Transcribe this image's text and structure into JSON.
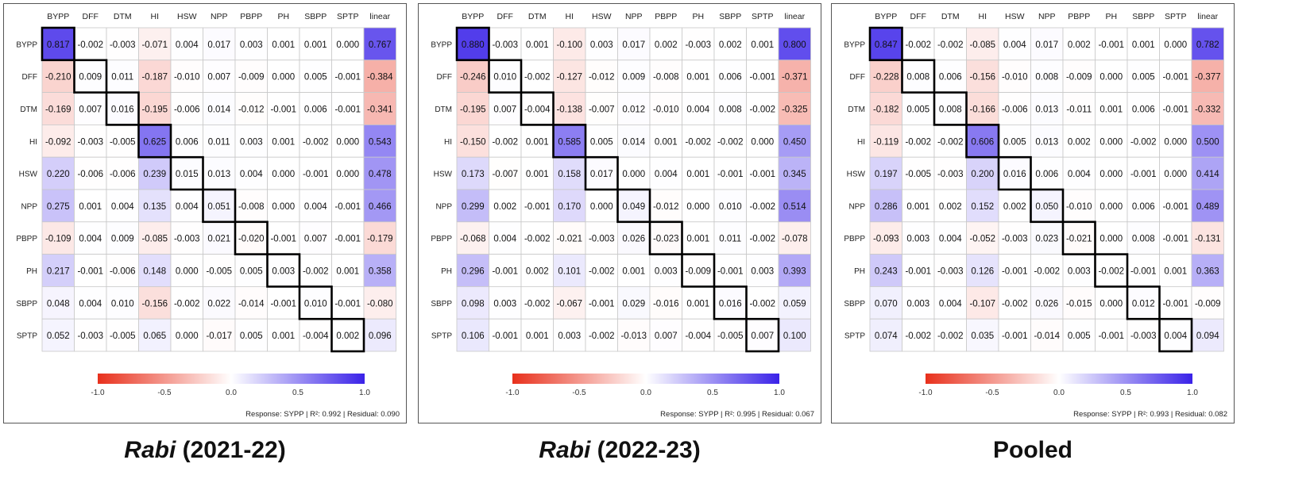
{
  "chart_data": [
    {
      "type": "heatmap",
      "caption_italic": "Rabi",
      "caption_rest": " (2021-22)",
      "columns": [
        "BYPP",
        "DFF",
        "DTM",
        "HI",
        "HSW",
        "NPP",
        "PBPP",
        "PH",
        "SBPP",
        "SPTP",
        "linear"
      ],
      "rows": [
        "BYPP",
        "DFF",
        "DTM",
        "HI",
        "HSW",
        "NPP",
        "PBPP",
        "PH",
        "SBPP",
        "SPTP"
      ],
      "values": [
        [
          0.817,
          -0.002,
          -0.003,
          -0.071,
          0.004,
          0.017,
          0.003,
          0.001,
          0.001,
          0.0,
          0.767
        ],
        [
          -0.21,
          0.009,
          0.011,
          -0.187,
          -0.01,
          0.007,
          -0.009,
          0.0,
          0.005,
          -0.001,
          -0.384
        ],
        [
          -0.169,
          0.007,
          0.016,
          -0.195,
          -0.006,
          0.014,
          -0.012,
          -0.001,
          0.006,
          -0.001,
          -0.341
        ],
        [
          -0.092,
          -0.003,
          -0.005,
          0.625,
          0.006,
          0.011,
          0.003,
          0.001,
          -0.002,
          0.0,
          0.543
        ],
        [
          0.22,
          -0.006,
          -0.006,
          0.239,
          0.015,
          0.013,
          0.004,
          0.0,
          -0.001,
          0.0,
          0.478
        ],
        [
          0.275,
          0.001,
          0.004,
          0.135,
          0.004,
          0.051,
          -0.008,
          0.0,
          0.004,
          -0.001,
          0.466
        ],
        [
          -0.109,
          0.004,
          0.009,
          -0.085,
          -0.003,
          0.021,
          -0.02,
          -0.001,
          0.007,
          -0.001,
          -0.179
        ],
        [
          0.217,
          -0.001,
          -0.006,
          0.148,
          0.0,
          -0.005,
          0.005,
          0.003,
          -0.002,
          0.001,
          0.358
        ],
        [
          0.048,
          0.004,
          0.01,
          -0.156,
          -0.002,
          0.022,
          -0.014,
          -0.001,
          0.01,
          -0.001,
          -0.08
        ],
        [
          0.052,
          -0.003,
          -0.005,
          0.065,
          0.0,
          -0.017,
          0.005,
          0.001,
          -0.004,
          0.002,
          0.096
        ]
      ],
      "color_range": [
        -1.0,
        1.0
      ],
      "colorbar_ticks": [
        "-1.0",
        "-0.5",
        "0.0",
        "0.5",
        "1.0"
      ],
      "colors": {
        "negative": "#e8301c",
        "zero": "#ffffff",
        "positive": "#3a22e8"
      },
      "footer": "Response: SYPP  |  R²: 0.992  |  Residual: 0.090"
    },
    {
      "type": "heatmap",
      "caption_italic": "Rabi",
      "caption_rest": " (2022-23)",
      "columns": [
        "BYPP",
        "DFF",
        "DTM",
        "HI",
        "HSW",
        "NPP",
        "PBPP",
        "PH",
        "SBPP",
        "SPTP",
        "linear"
      ],
      "rows": [
        "BYPP",
        "DFF",
        "DTM",
        "HI",
        "HSW",
        "NPP",
        "PBPP",
        "PH",
        "SBPP",
        "SPTP"
      ],
      "values": [
        [
          0.88,
          -0.003,
          0.001,
          -0.1,
          0.003,
          0.017,
          0.002,
          -0.003,
          0.002,
          0.001,
          0.8
        ],
        [
          -0.246,
          0.01,
          -0.002,
          -0.127,
          -0.012,
          0.009,
          -0.008,
          0.001,
          0.006,
          -0.001,
          -0.371
        ],
        [
          -0.195,
          0.007,
          -0.004,
          -0.138,
          -0.007,
          0.012,
          -0.01,
          0.004,
          0.008,
          -0.002,
          -0.325
        ],
        [
          -0.15,
          -0.002,
          0.001,
          0.585,
          0.005,
          0.014,
          0.001,
          -0.002,
          -0.002,
          0.0,
          0.45
        ],
        [
          0.173,
          -0.007,
          0.001,
          0.158,
          0.017,
          0.0,
          0.004,
          0.001,
          -0.001,
          -0.001,
          0.345
        ],
        [
          0.299,
          0.002,
          -0.001,
          0.17,
          0.0,
          0.049,
          -0.012,
          0.0,
          0.01,
          -0.002,
          0.514
        ],
        [
          -0.068,
          0.004,
          -0.002,
          -0.021,
          -0.003,
          0.026,
          -0.023,
          0.001,
          0.011,
          -0.002,
          -0.078
        ],
        [
          0.296,
          -0.001,
          0.002,
          0.101,
          -0.002,
          0.001,
          0.003,
          -0.009,
          -0.001,
          0.003,
          0.393
        ],
        [
          0.098,
          0.003,
          -0.002,
          -0.067,
          -0.001,
          0.029,
          -0.016,
          0.001,
          0.016,
          -0.002,
          0.059
        ],
        [
          0.106,
          -0.001,
          0.001,
          0.003,
          -0.002,
          -0.013,
          0.007,
          -0.004,
          -0.005,
          0.007,
          0.1
        ]
      ],
      "color_range": [
        -1.0,
        1.0
      ],
      "colorbar_ticks": [
        "-1.0",
        "-0.5",
        "0.0",
        "0.5",
        "1.0"
      ],
      "colors": {
        "negative": "#e8301c",
        "zero": "#ffffff",
        "positive": "#3a22e8"
      },
      "footer": "Response: SYPP  |  R²: 0.995  |  Residual: 0.067"
    },
    {
      "type": "heatmap",
      "caption_italic": "",
      "caption_rest": "Pooled",
      "columns": [
        "BYPP",
        "DFF",
        "DTM",
        "HI",
        "HSW",
        "NPP",
        "PBPP",
        "PH",
        "SBPP",
        "SPTP",
        "linear"
      ],
      "rows": [
        "BYPP",
        "DFF",
        "DTM",
        "HI",
        "HSW",
        "NPP",
        "PBPP",
        "PH",
        "SBPP",
        "SPTP"
      ],
      "values": [
        [
          0.847,
          -0.002,
          -0.002,
          -0.085,
          0.004,
          0.017,
          0.002,
          -0.001,
          0.001,
          0.0,
          0.782
        ],
        [
          -0.228,
          0.008,
          0.006,
          -0.156,
          -0.01,
          0.008,
          -0.009,
          0.0,
          0.005,
          -0.001,
          -0.377
        ],
        [
          -0.182,
          0.005,
          0.008,
          -0.166,
          -0.006,
          0.013,
          -0.011,
          0.001,
          0.006,
          -0.001,
          -0.332
        ],
        [
          -0.119,
          -0.002,
          -0.002,
          0.606,
          0.005,
          0.013,
          0.002,
          0.0,
          -0.002,
          0.0,
          0.5
        ],
        [
          0.197,
          -0.005,
          -0.003,
          0.2,
          0.016,
          0.006,
          0.004,
          0.0,
          -0.001,
          0.0,
          0.414
        ],
        [
          0.286,
          0.001,
          0.002,
          0.152,
          0.002,
          0.05,
          -0.01,
          0.0,
          0.006,
          -0.001,
          0.489
        ],
        [
          -0.093,
          0.003,
          0.004,
          -0.052,
          -0.003,
          0.023,
          -0.021,
          0.0,
          0.008,
          -0.001,
          -0.131
        ],
        [
          0.243,
          -0.001,
          -0.003,
          0.126,
          -0.001,
          -0.002,
          0.003,
          -0.002,
          -0.001,
          0.001,
          0.363
        ],
        [
          0.07,
          0.003,
          0.004,
          -0.107,
          -0.002,
          0.026,
          -0.015,
          0.0,
          0.012,
          -0.001,
          -0.009
        ],
        [
          0.074,
          -0.002,
          -0.002,
          0.035,
          -0.001,
          -0.014,
          0.005,
          -0.001,
          -0.003,
          0.004,
          0.094
        ]
      ],
      "color_range": [
        -1.0,
        1.0
      ],
      "colorbar_ticks": [
        "-1.0",
        "-0.5",
        "0.0",
        "0.5",
        "1.0"
      ],
      "colors": {
        "negative": "#e8301c",
        "zero": "#ffffff",
        "positive": "#3a22e8"
      },
      "footer": "Response: SYPP  |  R²: 0.993  |  Residual: 0.082"
    }
  ]
}
